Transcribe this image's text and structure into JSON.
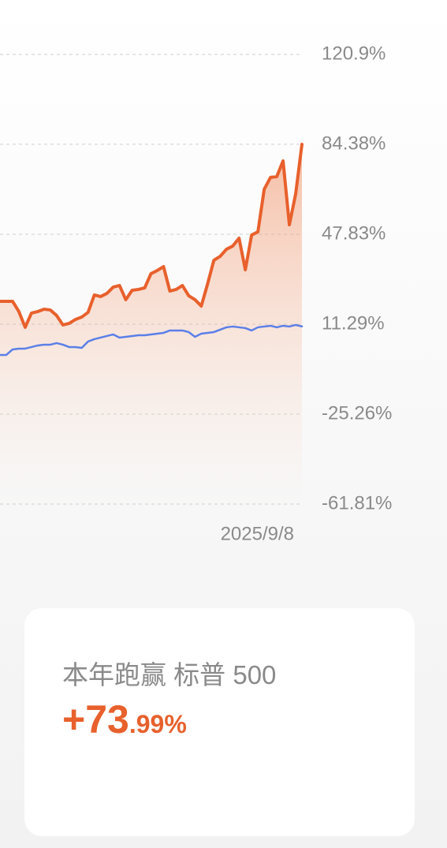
{
  "chart_data": {
    "type": "line",
    "categories": [
      null,
      null,
      null,
      null,
      null,
      null,
      null,
      null,
      null,
      null,
      null,
      null,
      null,
      null,
      null,
      null,
      null,
      null,
      null,
      null,
      null,
      null,
      null,
      null,
      null,
      null,
      null,
      null,
      null,
      null,
      null,
      null,
      null,
      null,
      null,
      null,
      null,
      null,
      null,
      null,
      null,
      null,
      null,
      null,
      null,
      null,
      null,
      null,
      "2025/9/8"
    ],
    "series": [
      {
        "color": "#e8602c",
        "area": true,
        "values": [
          20.59,
          20.59,
          20.59,
          16.42,
          10.01,
          15.78,
          16.42,
          17.38,
          17.06,
          14.82,
          10.97,
          11.61,
          13.21,
          14.18,
          16.1,
          23.15,
          22.51,
          23.79,
          26.36,
          27.0,
          21.23,
          25.07,
          25.4,
          26.04,
          31.81,
          33.09,
          34.69,
          24.75,
          25.4,
          27.0,
          22.83,
          21.23,
          18.66,
          27.64,
          37.26,
          38.86,
          41.74,
          43.03,
          46.23,
          33.41,
          47.51,
          48.8,
          66.11,
          70.92,
          71.24,
          77.65,
          51.68,
          64.18,
          84.38
        ]
      },
      {
        "color": "#5b7fe8",
        "area": false,
        "values": [
          -1.21,
          -1.21,
          1.03,
          1.35,
          1.35,
          1.99,
          2.63,
          2.96,
          2.96,
          3.6,
          2.96,
          1.99,
          1.99,
          1.67,
          4.24,
          5.2,
          5.84,
          6.48,
          7.12,
          5.84,
          6.16,
          6.48,
          6.8,
          6.8,
          7.12,
          7.44,
          7.76,
          8.73,
          8.73,
          8.73,
          8.08,
          6.16,
          7.44,
          7.76,
          8.08,
          9.05,
          10.01,
          10.33,
          10.01,
          9.69,
          8.73,
          10.01,
          10.33,
          10.65,
          10.01,
          10.65,
          10.33,
          10.97,
          10.39
        ]
      }
    ],
    "ylim": [
      -61.81,
      120.9
    ],
    "yticks": [
      {
        "value": 120.9,
        "label": "120.9%"
      },
      {
        "value": 84.38,
        "label": "84.38%"
      },
      {
        "value": 47.83,
        "label": "47.83%"
      },
      {
        "value": 11.29,
        "label": "11.29%"
      },
      {
        "value": -25.26,
        "label": "-25.26%"
      },
      {
        "value": -61.81,
        "label": "-61.81%"
      }
    ],
    "grid": true
  },
  "card": {
    "label": "本年跑赢 标普 500",
    "value_label": "+73.99%"
  }
}
